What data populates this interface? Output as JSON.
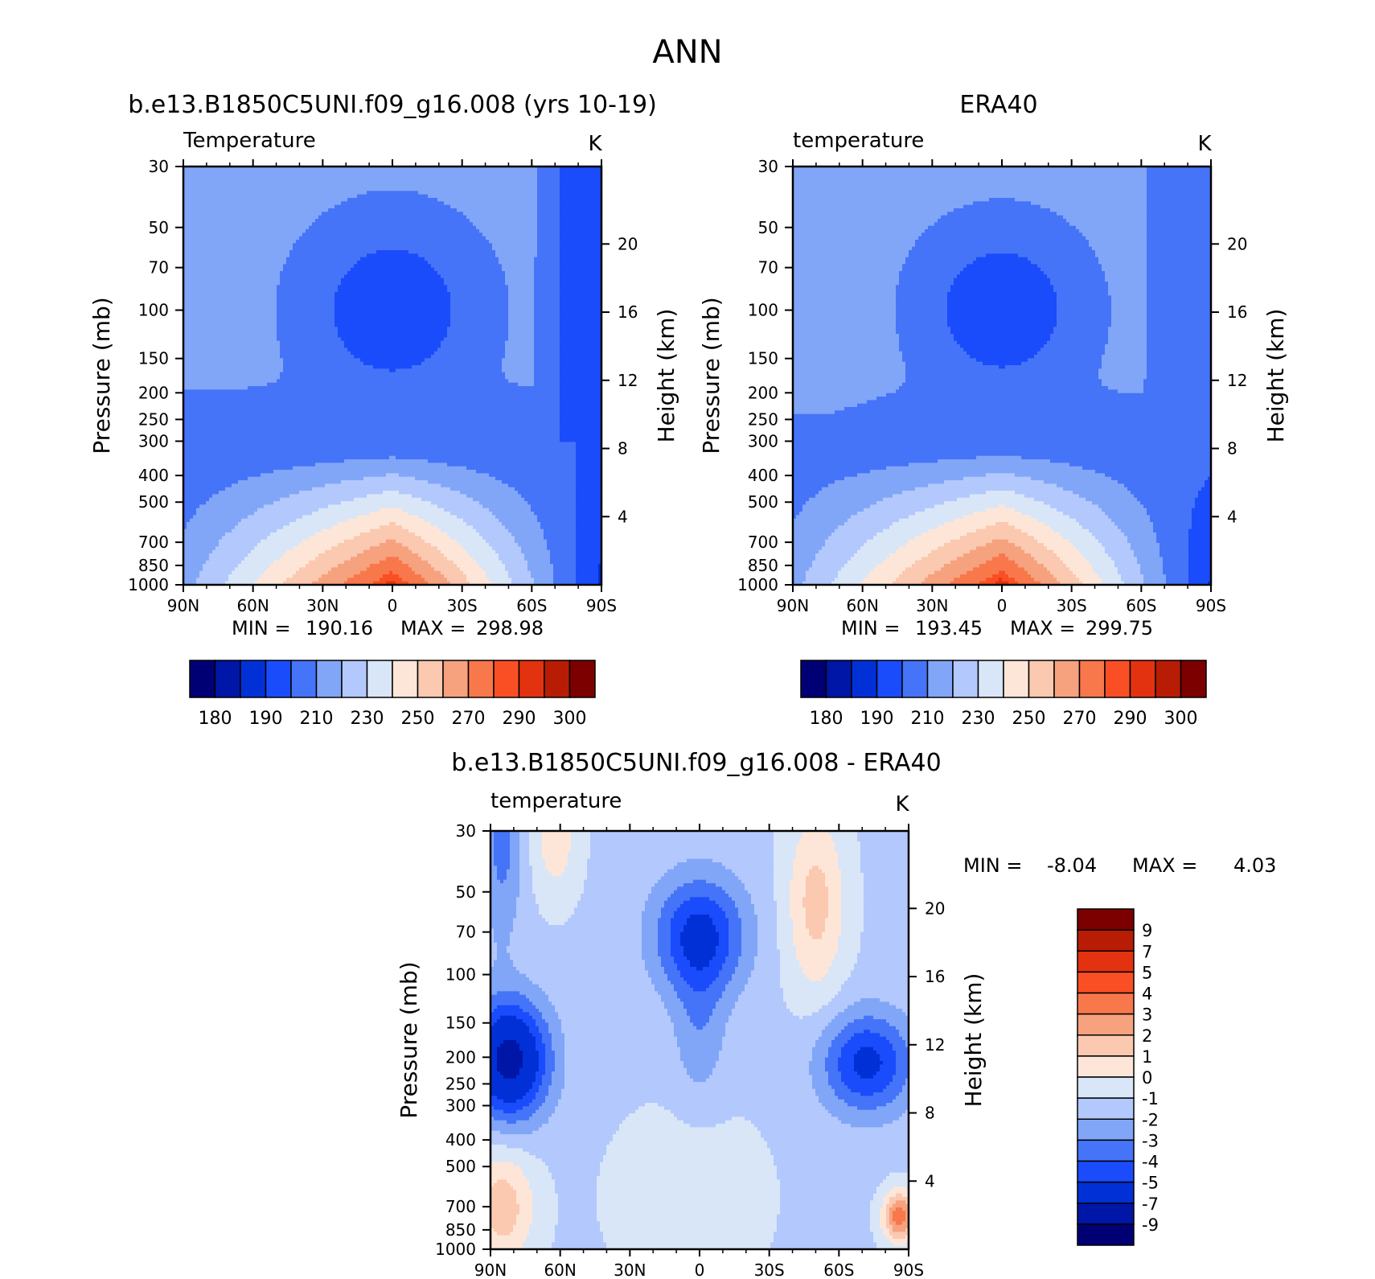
{
  "season": "ANN",
  "colors": {
    "temperature": [
      "#000074",
      "#0016a6",
      "#0131d6",
      "#1a4cfc",
      "#4574f8",
      "#81a6f8",
      "#b3c8fc",
      "#d8e6f8",
      "#fde6d8",
      "#fbc8b0",
      "#f6a27e",
      "#f8784b",
      "#fa4f24",
      "#e33210",
      "#b81c04",
      "#7c0000"
    ],
    "difference": [
      "#000074",
      "#0016a6",
      "#0131d6",
      "#1a4cfc",
      "#4574f8",
      "#81a6f8",
      "#b3c8fc",
      "#d8e6f8",
      "#fde6d8",
      "#fbc8b0",
      "#f6a27e",
      "#f8784b",
      "#fa4f24",
      "#e33210",
      "#b81c04",
      "#7c0000"
    ]
  },
  "chart_data": [
    {
      "type": "heatmap",
      "id": "model",
      "title": "b.e13.B1850C5UNI.f09_g16.008 (yrs 10-19)",
      "subtitle_left": "Temperature",
      "subtitle_right": "K",
      "xlabel": "",
      "ylabel": "Pressure (mb)",
      "ylabel_right": "Height (km)",
      "x_ticks": [
        "90N",
        "60N",
        "30N",
        "0",
        "30S",
        "60S",
        "90S"
      ],
      "y_ticks": [
        30,
        50,
        70,
        100,
        150,
        200,
        250,
        300,
        400,
        500,
        700,
        850,
        1000
      ],
      "y_right_ticks": [
        4,
        8,
        12,
        16,
        20
      ],
      "ylim": [
        1000,
        30
      ],
      "y_scale": "log",
      "stats": {
        "min_label": "MIN =",
        "min": "190.16",
        "max_label": "MAX =",
        "max": "298.98"
      },
      "levels": [
        180,
        190,
        210,
        230,
        250,
        270,
        290,
        300
      ],
      "levels_all": [
        180,
        185,
        190,
        200,
        210,
        220,
        230,
        240,
        250,
        260,
        270,
        280,
        290,
        295,
        300
      ]
    },
    {
      "type": "heatmap",
      "id": "obs",
      "title": "ERA40",
      "subtitle_left": "temperature",
      "subtitle_right": "K",
      "xlabel": "",
      "ylabel": "Pressure (mb)",
      "ylabel_right": "Height (km)",
      "x_ticks": [
        "90N",
        "60N",
        "30N",
        "0",
        "30S",
        "60S",
        "90S"
      ],
      "y_ticks": [
        30,
        50,
        70,
        100,
        150,
        200,
        250,
        300,
        400,
        500,
        700,
        850,
        1000
      ],
      "y_right_ticks": [
        4,
        8,
        12,
        16,
        20
      ],
      "ylim": [
        1000,
        30
      ],
      "y_scale": "log",
      "stats": {
        "min_label": "MIN =",
        "min": "193.45",
        "max_label": "MAX =",
        "max": "299.75"
      },
      "levels": [
        180,
        190,
        210,
        230,
        250,
        270,
        290,
        300
      ]
    },
    {
      "type": "heatmap",
      "id": "diff",
      "title": "b.e13.B1850C5UNI.f09_g16.008 - ERA40",
      "subtitle_left": "temperature",
      "subtitle_right": "K",
      "xlabel": "",
      "ylabel": "Pressure (mb)",
      "ylabel_right": "Height (km)",
      "x_ticks": [
        "90N",
        "60N",
        "30N",
        "0",
        "30S",
        "60S",
        "90S"
      ],
      "y_ticks": [
        30,
        50,
        70,
        100,
        150,
        200,
        250,
        300,
        400,
        500,
        700,
        850,
        1000
      ],
      "y_right_ticks": [
        4,
        8,
        12,
        16,
        20
      ],
      "ylim": [
        1000,
        30
      ],
      "y_scale": "log",
      "stats": {
        "min_label": "MIN =",
        "min": "-8.04",
        "max_label": "MAX =",
        "max": "4.03"
      },
      "levels": [
        9,
        7,
        5,
        4,
        3,
        2,
        1,
        0,
        -1,
        -2,
        -3,
        -4,
        -5,
        -7,
        -9
      ]
    }
  ]
}
